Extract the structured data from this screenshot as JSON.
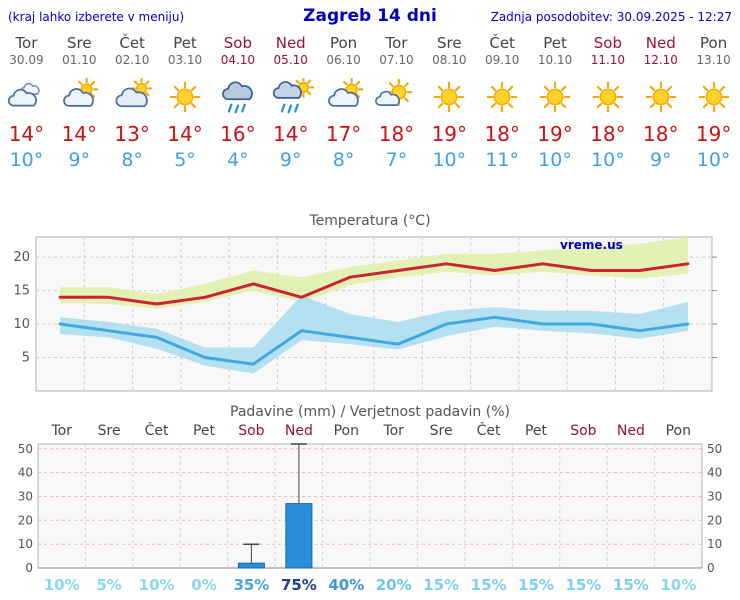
{
  "header": {
    "note": "(kraj lahko izberete v meniju)",
    "title": "Zagreb 14 dni",
    "updated": "Zadnja posodobitev: 30.09.2025 - 12:27"
  },
  "forecast": {
    "days": [
      {
        "name": "Tor",
        "date": "30.09",
        "icon": "cloudy",
        "high": "14°",
        "low": "10°",
        "weekend": false
      },
      {
        "name": "Sre",
        "date": "01.10",
        "icon": "partly-cloudy",
        "high": "14°",
        "low": "9°",
        "weekend": false
      },
      {
        "name": "Čet",
        "date": "02.10",
        "icon": "mostly-cloudy",
        "high": "13°",
        "low": "8°",
        "weekend": false
      },
      {
        "name": "Pet",
        "date": "03.10",
        "icon": "sunny",
        "high": "14°",
        "low": "5°",
        "weekend": false
      },
      {
        "name": "Sob",
        "date": "04.10",
        "icon": "rain",
        "high": "16°",
        "low": "4°",
        "weekend": true
      },
      {
        "name": "Ned",
        "date": "05.10",
        "icon": "rain-sun",
        "high": "14°",
        "low": "9°",
        "weekend": true
      },
      {
        "name": "Pon",
        "date": "06.10",
        "icon": "partly-cloudy",
        "high": "17°",
        "low": "8°",
        "weekend": false
      },
      {
        "name": "Tor",
        "date": "07.10",
        "icon": "mostly-sunny",
        "high": "18°",
        "low": "7°",
        "weekend": false
      },
      {
        "name": "Sre",
        "date": "08.10",
        "icon": "sunny",
        "high": "19°",
        "low": "10°",
        "weekend": false
      },
      {
        "name": "Čet",
        "date": "09.10",
        "icon": "sunny",
        "high": "18°",
        "low": "11°",
        "weekend": false
      },
      {
        "name": "Pet",
        "date": "10.10",
        "icon": "sunny",
        "high": "19°",
        "low": "10°",
        "weekend": false
      },
      {
        "name": "Sob",
        "date": "11.10",
        "icon": "sunny",
        "high": "18°",
        "low": "10°",
        "weekend": true
      },
      {
        "name": "Ned",
        "date": "12.10",
        "icon": "sunny",
        "high": "18°",
        "low": "9°",
        "weekend": true
      },
      {
        "name": "Pon",
        "date": "13.10",
        "icon": "sunny",
        "high": "19°",
        "low": "10°",
        "weekend": false
      }
    ]
  },
  "chart_data": [
    {
      "type": "line",
      "title": "Temperatura (°C)",
      "watermark": "vreme.us",
      "categories": [
        "Tor",
        "Sre",
        "Čet",
        "Pet",
        "Sob",
        "Ned",
        "Pon",
        "Tor",
        "Sre",
        "Čet",
        "Pet",
        "Sob",
        "Ned",
        "Pon"
      ],
      "ylim": [
        0,
        23
      ],
      "yticks": [
        5,
        10,
        15,
        20
      ],
      "series": [
        {
          "name": "max-temp",
          "color": "#cc2233",
          "band_color": "#dff0a8",
          "values": [
            14,
            14,
            13,
            14,
            16,
            14,
            17,
            18,
            19,
            18,
            19,
            18,
            18,
            19
          ],
          "band_upper": [
            15.5,
            15.5,
            14.5,
            16,
            18,
            17,
            18.5,
            19.5,
            20.5,
            20.5,
            21,
            21.5,
            22,
            23
          ],
          "band_lower": [
            13.2,
            13,
            12.3,
            13.3,
            15,
            13.3,
            15.8,
            17,
            17.8,
            17.3,
            17.8,
            17.2,
            16.8,
            17.5
          ]
        },
        {
          "name": "min-temp",
          "color": "#3fa8e0",
          "band_color": "#a8dcf0",
          "values": [
            10,
            9,
            8,
            5,
            4,
            9,
            8,
            7,
            10,
            11,
            10,
            10,
            9,
            10
          ],
          "band_upper": [
            11,
            10.3,
            9.3,
            6.5,
            6.5,
            14.3,
            11.5,
            10.3,
            12,
            12.5,
            12,
            12,
            11.5,
            13.3
          ],
          "band_lower": [
            8.5,
            8,
            6.3,
            3.8,
            2.6,
            7.6,
            7,
            6.2,
            8.2,
            9.6,
            9,
            8.6,
            7.8,
            9
          ]
        }
      ]
    },
    {
      "type": "bar",
      "title": "Padavine (mm) / Verjetnost padavin (%)",
      "categories": [
        "Tor",
        "Sre",
        "Čet",
        "Pet",
        "Sob",
        "Ned",
        "Pon",
        "Tor",
        "Sre",
        "Čet",
        "Pet",
        "Sob",
        "Ned",
        "Pon"
      ],
      "weekend": [
        false,
        false,
        false,
        false,
        true,
        true,
        false,
        false,
        false,
        false,
        false,
        true,
        true,
        false
      ],
      "values": [
        0,
        0,
        0,
        0,
        2,
        27,
        0,
        0,
        0,
        0,
        0,
        0,
        0,
        0
      ],
      "whisker_max": [
        0,
        0,
        0,
        0,
        10,
        52,
        0,
        0,
        0,
        0,
        0,
        0,
        0,
        0
      ],
      "ylim": [
        0,
        52
      ],
      "yticks": [
        0,
        10,
        20,
        30,
        40,
        50
      ],
      "bar_color": "#2b8fd9",
      "probabilities": [
        {
          "label": "10%",
          "color": "#86d8f4"
        },
        {
          "label": "5%",
          "color": "#86d8f4"
        },
        {
          "label": "10%",
          "color": "#86d8f4"
        },
        {
          "label": "0%",
          "color": "#86d8f4"
        },
        {
          "label": "35%",
          "color": "#4aa3dd"
        },
        {
          "label": "75%",
          "color": "#1d3f8e"
        },
        {
          "label": "40%",
          "color": "#3f95d4"
        },
        {
          "label": "20%",
          "color": "#6cc6ec"
        },
        {
          "label": "15%",
          "color": "#7cd0f0"
        },
        {
          "label": "15%",
          "color": "#7cd0f0"
        },
        {
          "label": "15%",
          "color": "#7cd0f0"
        },
        {
          "label": "15%",
          "color": "#7cd0f0"
        },
        {
          "label": "15%",
          "color": "#7cd0f0"
        },
        {
          "label": "10%",
          "color": "#86d8f4"
        }
      ]
    }
  ]
}
